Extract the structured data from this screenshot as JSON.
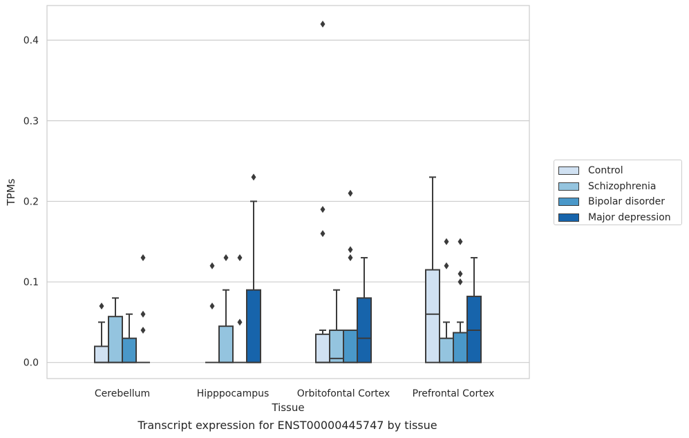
{
  "chart_data": {
    "type": "box",
    "caption": "Transcript expression for ENST00000445747 by tissue",
    "xlabel": "Tissue",
    "ylabel": "TPMs",
    "ylim": [
      -0.02,
      0.443
    ],
    "yticks": [
      "0.0",
      "0.1",
      "0.2",
      "0.3",
      "0.4"
    ],
    "ytick_values": [
      0.0,
      0.1,
      0.2,
      0.3,
      0.4
    ],
    "grid": "horizontal",
    "legend_position": "right",
    "categories": [
      "Cerebellum",
      "Hipppocampus",
      "Orbitofontal Cortex",
      "Prefrontal Cortex"
    ],
    "series": [
      {
        "name": "Control",
        "color": "#d0e1f2",
        "boxes": [
          {
            "q1": 0.0,
            "median": 0.0,
            "q3": 0.02,
            "whisker_low": 0.0,
            "whisker_high": 0.05,
            "outliers": [
              0.07
            ]
          },
          {
            "q1": 0.0,
            "median": 0.0,
            "q3": 0.0,
            "whisker_low": 0.0,
            "whisker_high": 0.0,
            "outliers": [
              0.07,
              0.12
            ]
          },
          {
            "q1": 0.0,
            "median": 0.0,
            "q3": 0.035,
            "whisker_low": 0.0,
            "whisker_high": 0.04,
            "outliers": [
              0.16,
              0.19,
              0.42
            ]
          },
          {
            "q1": 0.0,
            "median": 0.06,
            "q3": 0.115,
            "whisker_low": 0.0,
            "whisker_high": 0.23,
            "outliers": []
          }
        ]
      },
      {
        "name": "Schizophrenia",
        "color": "#94c4df",
        "boxes": [
          {
            "q1": 0.0,
            "median": 0.0,
            "q3": 0.057,
            "whisker_low": 0.0,
            "whisker_high": 0.08,
            "outliers": []
          },
          {
            "q1": 0.0,
            "median": 0.0,
            "q3": 0.045,
            "whisker_low": 0.0,
            "whisker_high": 0.09,
            "outliers": [
              0.13
            ]
          },
          {
            "q1": 0.0,
            "median": 0.005,
            "q3": 0.04,
            "whisker_low": 0.0,
            "whisker_high": 0.09,
            "outliers": []
          },
          {
            "q1": 0.0,
            "median": 0.0,
            "q3": 0.03,
            "whisker_low": 0.0,
            "whisker_high": 0.05,
            "outliers": [
              0.12,
              0.15
            ]
          }
        ]
      },
      {
        "name": "Bipolar disorder",
        "color": "#4a98c9",
        "boxes": [
          {
            "q1": 0.0,
            "median": 0.0,
            "q3": 0.03,
            "whisker_low": 0.0,
            "whisker_high": 0.06,
            "outliers": []
          },
          {
            "q1": 0.0,
            "median": 0.0,
            "q3": 0.0,
            "whisker_low": 0.0,
            "whisker_high": 0.0,
            "outliers": [
              0.05,
              0.13
            ]
          },
          {
            "q1": 0.0,
            "median": 0.0,
            "q3": 0.04,
            "whisker_low": 0.0,
            "whisker_high": 0.04,
            "outliers": [
              0.13,
              0.14,
              0.21
            ]
          },
          {
            "q1": 0.0,
            "median": 0.0,
            "q3": 0.037,
            "whisker_low": 0.0,
            "whisker_high": 0.05,
            "outliers": [
              0.1,
              0.11,
              0.15
            ]
          }
        ]
      },
      {
        "name": "Major depression",
        "color": "#1764ab",
        "boxes": [
          {
            "q1": 0.0,
            "median": 0.0,
            "q3": 0.0,
            "whisker_low": 0.0,
            "whisker_high": 0.0,
            "outliers": [
              0.04,
              0.06,
              0.13
            ]
          },
          {
            "q1": 0.0,
            "median": 0.0,
            "q3": 0.09,
            "whisker_low": 0.0,
            "whisker_high": 0.2,
            "outliers": [
              0.23
            ]
          },
          {
            "q1": 0.0,
            "median": 0.03,
            "q3": 0.08,
            "whisker_low": 0.0,
            "whisker_high": 0.13,
            "outliers": []
          },
          {
            "q1": 0.0,
            "median": 0.04,
            "q3": 0.082,
            "whisker_low": 0.0,
            "whisker_high": 0.13,
            "outliers": []
          }
        ]
      }
    ]
  }
}
